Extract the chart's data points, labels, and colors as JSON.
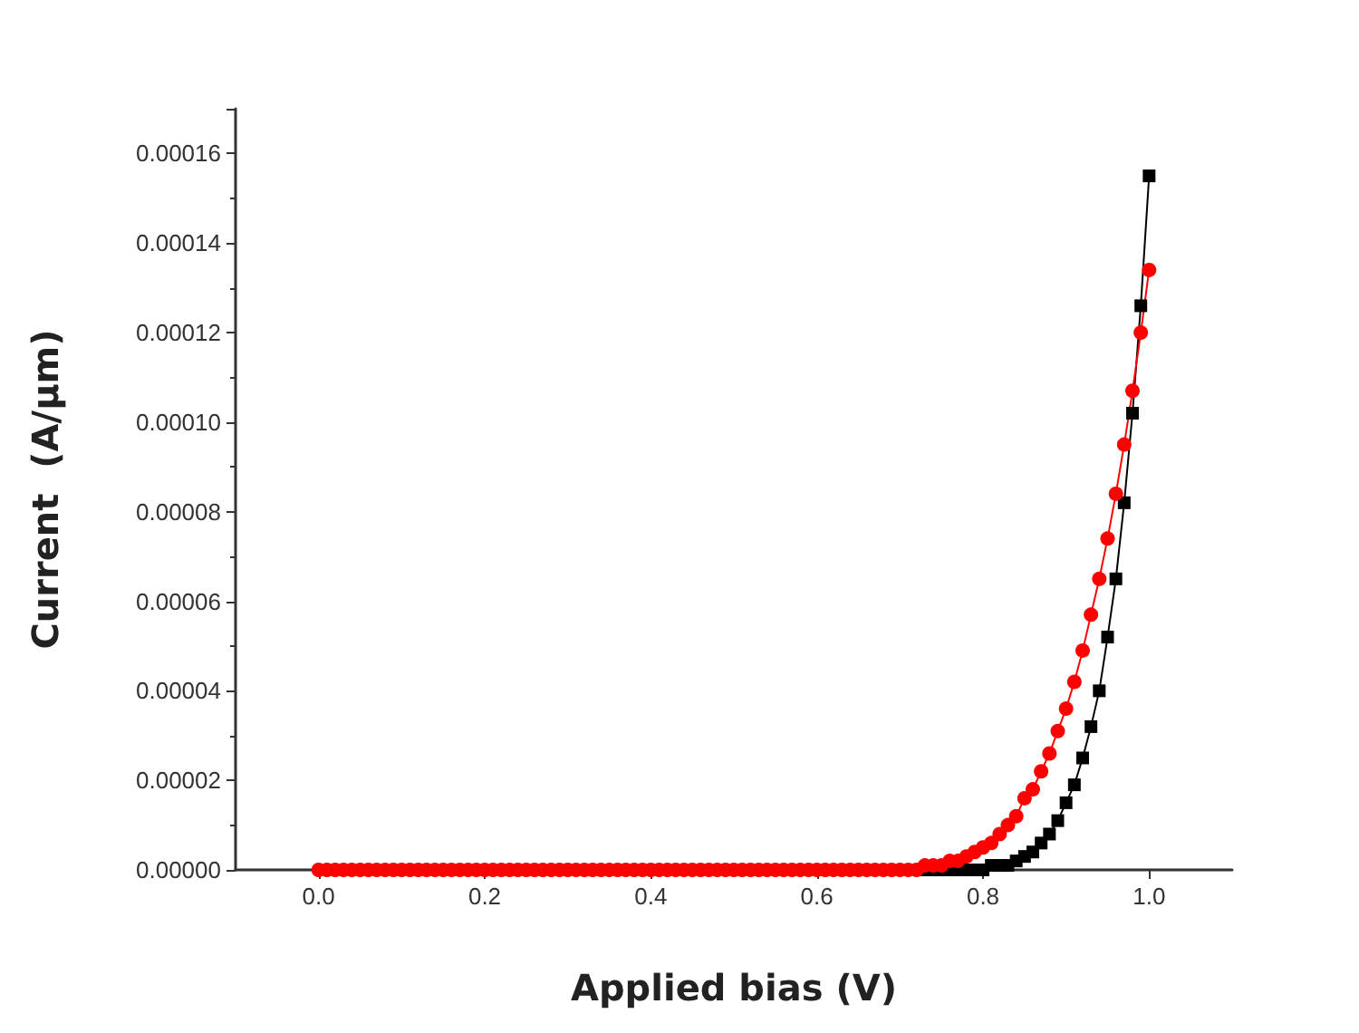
{
  "chart_data": {
    "type": "line",
    "xlabel": "Applied bias (V)",
    "ylabel": "Current  (A/μm)",
    "x": [
      0,
      0.01,
      0.02,
      0.03,
      0.04,
      0.05,
      0.06,
      0.07,
      0.08,
      0.09,
      0.1,
      0.11,
      0.12,
      0.13,
      0.14,
      0.15,
      0.16,
      0.17,
      0.18,
      0.19,
      0.2,
      0.21,
      0.22,
      0.23,
      0.24,
      0.25,
      0.26,
      0.27,
      0.28,
      0.29,
      0.3,
      0.31,
      0.32,
      0.33,
      0.34,
      0.35,
      0.36,
      0.37,
      0.38,
      0.39,
      0.4,
      0.41,
      0.42,
      0.43,
      0.44,
      0.45,
      0.46,
      0.47,
      0.48,
      0.49,
      0.5,
      0.51,
      0.52,
      0.53,
      0.54,
      0.55,
      0.56,
      0.57,
      0.58,
      0.59,
      0.6,
      0.61,
      0.62,
      0.63,
      0.64,
      0.65,
      0.66,
      0.67,
      0.68,
      0.69,
      0.7,
      0.71,
      0.72,
      0.73,
      0.74,
      0.75,
      0.76,
      0.77,
      0.78,
      0.79,
      0.8,
      0.81,
      0.82,
      0.83,
      0.84,
      0.85,
      0.86,
      0.87,
      0.88,
      0.89,
      0.9,
      0.91,
      0.92,
      0.93,
      0.94,
      0.95,
      0.96,
      0.97,
      0.98,
      0.99,
      1
    ],
    "series": [
      {
        "color": "#000000",
        "marker": "square",
        "values": [
          null,
          null,
          null,
          null,
          null,
          null,
          null,
          null,
          null,
          null,
          null,
          null,
          null,
          null,
          null,
          null,
          null,
          null,
          null,
          null,
          null,
          null,
          null,
          null,
          null,
          null,
          null,
          null,
          null,
          null,
          null,
          null,
          null,
          null,
          null,
          null,
          null,
          null,
          null,
          null,
          null,
          null,
          null,
          null,
          null,
          null,
          null,
          null,
          null,
          null,
          null,
          null,
          null,
          null,
          null,
          null,
          null,
          null,
          null,
          null,
          null,
          null,
          null,
          null,
          null,
          null,
          null,
          null,
          null,
          null,
          null,
          null,
          null,
          0,
          0,
          0,
          0,
          0,
          0,
          0,
          0,
          1e-06,
          1e-06,
          1e-06,
          2e-06,
          3e-06,
          4e-06,
          6e-06,
          8e-06,
          1.1e-05,
          1.5e-05,
          1.9e-05,
          2.5e-05,
          3.2e-05,
          4e-05,
          5.2e-05,
          6.5e-05,
          8.2e-05,
          0.000102,
          0.000126,
          0.000155
        ]
      },
      {
        "color": "#ff0000",
        "marker": "circle",
        "values": [
          0,
          0,
          0,
          0,
          0,
          0,
          0,
          0,
          0,
          0,
          0,
          0,
          0,
          0,
          0,
          0,
          0,
          0,
          0,
          0,
          0,
          0,
          0,
          0,
          0,
          0,
          0,
          0,
          0,
          0,
          0,
          0,
          0,
          0,
          0,
          0,
          0,
          0,
          0,
          0,
          0,
          0,
          0,
          0,
          0,
          0,
          0,
          0,
          0,
          0,
          0,
          0,
          0,
          0,
          0,
          0,
          0,
          0,
          0,
          0,
          0,
          0,
          0,
          0,
          0,
          0,
          0,
          0,
          0,
          0,
          0,
          0,
          0,
          1e-06,
          1e-06,
          1e-06,
          2e-06,
          2e-06,
          3e-06,
          4e-06,
          5e-06,
          6e-06,
          8e-06,
          1e-05,
          1.2e-05,
          1.6e-05,
          1.8e-05,
          2.2e-05,
          2.6e-05,
          3.1e-05,
          3.6e-05,
          4.2e-05,
          4.9e-05,
          5.7e-05,
          6.5e-05,
          7.4e-05,
          8.4e-05,
          9.5e-05,
          0.000107,
          0.00012,
          0.000134
        ]
      }
    ],
    "xlim": [
      -0.1,
      1.1
    ],
    "xticks": [
      {
        "value": 0,
        "label": "0.0"
      },
      {
        "value": 0.2,
        "label": "0.2"
      },
      {
        "value": 0.4,
        "label": "0.4"
      },
      {
        "value": 0.6,
        "label": "0.6"
      },
      {
        "value": 0.8,
        "label": "0.8"
      },
      {
        "value": 1,
        "label": "1.0"
      }
    ],
    "ylim": [
      0,
      0.00017
    ],
    "yticks": [
      {
        "value": 0,
        "label": "0.00000"
      },
      {
        "value": 2e-05,
        "label": "0.00002"
      },
      {
        "value": 4e-05,
        "label": "0.00004"
      },
      {
        "value": 6e-05,
        "label": "0.00006"
      },
      {
        "value": 8e-05,
        "label": "0.00008"
      },
      {
        "value": 0.0001,
        "label": "0.00010"
      },
      {
        "value": 0.00012,
        "label": "0.00012"
      },
      {
        "value": 0.00014,
        "label": "0.00014"
      },
      {
        "value": 0.00016,
        "label": "0.00016"
      }
    ],
    "grid": false
  }
}
